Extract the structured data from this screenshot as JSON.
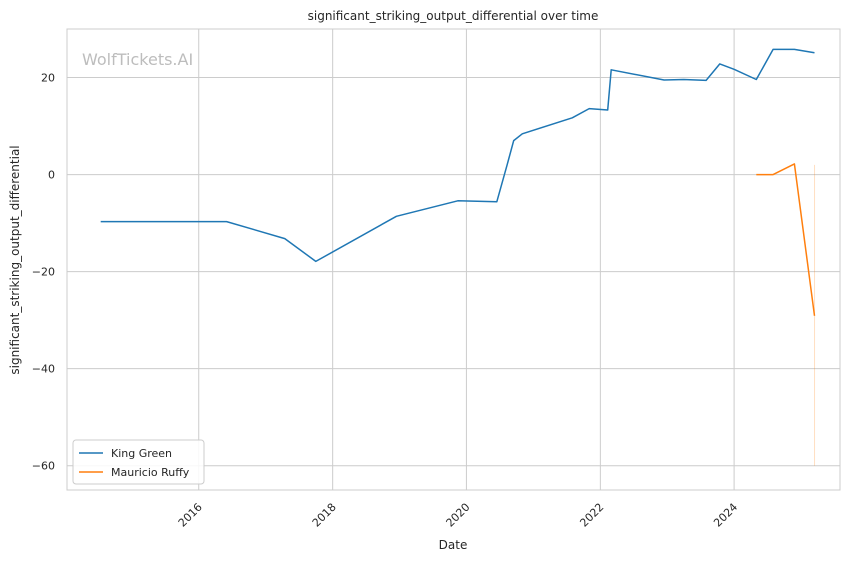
{
  "chart_data": {
    "type": "line",
    "title": "significant_striking_output_differential over time",
    "xlabel": "Date",
    "ylabel": "significant_striking_output_differential",
    "watermark": "WolfTickets.AI",
    "xlim": [
      "2014-01-12",
      "2025-08-01"
    ],
    "ylim": [
      -65,
      30
    ],
    "x_ticks": [
      "2016-01-01",
      "2018-01-01",
      "2020-01-01",
      "2022-01-01",
      "2024-01-01"
    ],
    "x_tick_labels": [
      "2016",
      "2018",
      "2020",
      "2022",
      "2024"
    ],
    "y_ticks": [
      -60,
      -40,
      -20,
      0,
      20
    ],
    "y_tick_labels": [
      "−60",
      "−40",
      "−20",
      "0",
      "20"
    ],
    "grid": true,
    "legend_position": "bottom-left",
    "series": [
      {
        "name": "King Green",
        "color": "#1f77b4",
        "points": [
          [
            "2014-07-15",
            -9.7
          ],
          [
            "2016-06-01",
            -9.7
          ],
          [
            "2017-04-15",
            -13.2
          ],
          [
            "2017-10-01",
            -17.9
          ],
          [
            "2018-12-15",
            -8.6
          ],
          [
            "2019-11-15",
            -5.4
          ],
          [
            "2020-06-15",
            -5.6
          ],
          [
            "2020-08-10",
            2.0
          ],
          [
            "2020-09-15",
            7.0
          ],
          [
            "2020-11-01",
            8.4
          ],
          [
            "2021-08-01",
            11.7
          ],
          [
            "2021-11-01",
            13.6
          ],
          [
            "2022-02-10",
            13.3
          ],
          [
            "2022-03-01",
            21.6
          ],
          [
            "2022-12-15",
            19.5
          ],
          [
            "2023-04-01",
            19.6
          ],
          [
            "2023-08-01",
            19.4
          ],
          [
            "2023-10-15",
            22.8
          ],
          [
            "2024-01-01",
            21.7
          ],
          [
            "2024-05-01",
            19.6
          ],
          [
            "2024-08-01",
            25.8
          ],
          [
            "2024-11-25",
            25.8
          ],
          [
            "2025-03-15",
            25.1
          ]
        ]
      },
      {
        "name": "Mauricio Ruffy",
        "color": "#ff7f0e",
        "points": [
          [
            "2024-05-01",
            0.0
          ],
          [
            "2024-08-01",
            0.0
          ],
          [
            "2024-11-25",
            2.2
          ],
          [
            "2025-03-15",
            -29.1
          ]
        ],
        "band": {
          "x": "2025-03-15",
          "y_range": [
            -60,
            2
          ]
        }
      }
    ]
  }
}
